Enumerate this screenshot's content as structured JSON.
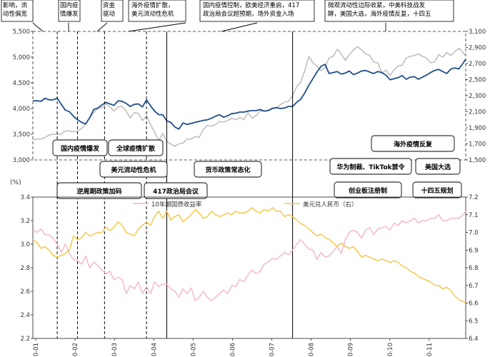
{
  "chart_data": [
    {
      "type": "line",
      "title": "",
      "ylim_left": [
        3000,
        5500
      ],
      "ylim_right": [
        1500,
        3100
      ],
      "left_ticks": [
        "3,000",
        "3,500",
        "4,000",
        "4,500",
        "5,000",
        "5,500"
      ],
      "right_ticks": [
        "1,500",
        "1,700",
        "1,900",
        "2,100",
        "2,300",
        "2,500",
        "2,700",
        "2,900",
        "3,100"
      ],
      "series": [
        {
          "axis": "left",
          "color": "#1f4e8c",
          "x": [
            0,
            3,
            6,
            9,
            12,
            15,
            18,
            21,
            24,
            27,
            30,
            33,
            36,
            39,
            42,
            45,
            48,
            51,
            54,
            57,
            60,
            63,
            66,
            69,
            72,
            75,
            78,
            81,
            84,
            87,
            90,
            93,
            96,
            99,
            102,
            105,
            108,
            111,
            114,
            117,
            120,
            123,
            126,
            129,
            132,
            135,
            138,
            141,
            144,
            147,
            150,
            153,
            156,
            159,
            162,
            165,
            168,
            171,
            174,
            177,
            180,
            183,
            186,
            189,
            192,
            195,
            198,
            201,
            204,
            207,
            210,
            213,
            216,
            219,
            222,
            225,
            228,
            231,
            234,
            237,
            240,
            243,
            246,
            249,
            252,
            255,
            258,
            261,
            264,
            267,
            270,
            273,
            276,
            279,
            282,
            285,
            288,
            291,
            294,
            297,
            300,
            303,
            306,
            309,
            312,
            315,
            318,
            320
          ],
          "values": [
            4150,
            4150,
            4140,
            4200,
            4170,
            4170,
            4200,
            4080,
            3970,
            3940,
            3850,
            3780,
            3730,
            3700,
            3820,
            3980,
            4010,
            4070,
            4120,
            4090,
            4060,
            4150,
            4140,
            4100,
            4040,
            4080,
            4090,
            4030,
            4170,
            4050,
            3950,
            3880,
            3880,
            3760,
            3730,
            3640,
            3600,
            3720,
            3690,
            3710,
            3730,
            3750,
            3770,
            3780,
            3810,
            3850,
            3880,
            3830,
            3860,
            3900,
            3910,
            3930,
            3930,
            3950,
            3960,
            3960,
            3980,
            3950,
            3960,
            4000,
            4020,
            4000,
            4010,
            4040,
            4040,
            4120,
            4180,
            4300,
            4450,
            4580,
            4710,
            4820,
            4860,
            4680,
            4700,
            4720,
            4670,
            4690,
            4730,
            4660,
            4690,
            4730,
            4740,
            4710,
            4680,
            4720,
            4700,
            4650,
            4560,
            4580,
            4600,
            4640,
            4570,
            4610,
            4620,
            4570,
            4610,
            4650,
            4700,
            4740,
            4760,
            4720,
            4680,
            4770,
            4790,
            4770,
            4880,
            4960
          ]
        },
        {
          "axis": "right",
          "color": "#b8b8b8",
          "x": [
            0,
            3,
            6,
            9,
            12,
            15,
            18,
            21,
            24,
            27,
            30,
            33,
            36,
            39,
            42,
            45,
            48,
            51,
            54,
            57,
            60,
            63,
            66,
            69,
            72,
            75,
            78,
            81,
            84,
            87,
            90,
            93,
            96,
            99,
            102,
            105,
            108,
            111,
            114,
            117,
            120,
            123,
            126,
            129,
            132,
            135,
            138,
            141,
            144,
            147,
            150,
            153,
            156,
            159,
            162,
            165,
            168,
            171,
            174,
            177,
            180,
            183,
            186,
            189,
            192,
            195,
            198,
            201,
            204,
            207,
            210,
            213,
            216,
            219,
            222,
            225,
            228,
            231,
            234,
            237,
            240,
            243,
            246,
            249,
            252,
            255,
            258,
            261,
            264,
            267,
            270,
            273,
            276,
            279,
            282,
            285,
            288,
            291,
            294,
            297,
            300,
            303,
            306,
            309,
            312,
            315,
            318,
            320
          ],
          "values": [
            1750,
            1760,
            1760,
            1780,
            1810,
            1820,
            1820,
            1820,
            1860,
            1860,
            1850,
            1860,
            1890,
            1950,
            2020,
            2090,
            2140,
            2150,
            2200,
            2160,
            2110,
            2160,
            2170,
            2110,
            2020,
            2090,
            2080,
            1990,
            2050,
            1940,
            1850,
            1740,
            1830,
            1730,
            1700,
            1670,
            1700,
            1710,
            1760,
            1760,
            1790,
            1780,
            1880,
            1930,
            1920,
            1940,
            1980,
            1970,
            1990,
            2020,
            2000,
            2030,
            2000,
            2090,
            2020,
            2050,
            2110,
            2110,
            2120,
            2150,
            2140,
            2190,
            2220,
            2230,
            2300,
            2410,
            2470,
            2610,
            2790,
            2710,
            2670,
            2610,
            2650,
            2770,
            2790,
            2880,
            2820,
            2740,
            2810,
            2870,
            2910,
            2870,
            2820,
            2800,
            2720,
            2710,
            2580,
            2620,
            2550,
            2620,
            2670,
            2680,
            2770,
            2790,
            2800,
            2820,
            2790,
            2770,
            2710,
            2720,
            2810,
            2780,
            2840,
            2800,
            2850,
            2890,
            2840,
            2790
          ]
        }
      ]
    },
    {
      "type": "line",
      "title": "",
      "ylabel": "(%)",
      "ylim_left": [
        2.2,
        3.4
      ],
      "ylim_right": [
        6.4,
        7.2
      ],
      "left_ticks": [
        "2.2",
        "2.4",
        "2.6",
        "2.8",
        "3.0",
        "3.2",
        "3.4"
      ],
      "right_ticks": [
        "6.4",
        "6.5",
        "6.6",
        "6.7",
        "6.8",
        "6.9",
        "7.0",
        "7.1",
        "7.2"
      ],
      "x_ticks": [
        "0-01",
        "0-02",
        "0-03",
        "0-04",
        "0-05",
        "0-06",
        "0-07",
        "0-08",
        "0-09",
        "0-10",
        "0-11"
      ],
      "legend": [
        "10年期国债收益率",
        "美元兑人民币（右）"
      ],
      "series": [
        {
          "name": "10年期国债收益率",
          "axis": "left",
          "color": "#f4b6c2",
          "x": [
            0,
            3,
            6,
            9,
            12,
            15,
            18,
            21,
            24,
            27,
            30,
            33,
            36,
            39,
            42,
            45,
            48,
            51,
            54,
            57,
            60,
            63,
            66,
            69,
            72,
            75,
            78,
            81,
            84,
            87,
            90,
            93,
            96,
            99,
            102,
            105,
            108,
            111,
            114,
            117,
            120,
            123,
            126,
            129,
            132,
            135,
            138,
            141,
            144,
            147,
            150,
            153,
            156,
            159,
            162,
            165,
            168,
            171,
            174,
            177,
            180,
            183,
            186,
            189,
            192,
            195,
            198,
            201,
            204,
            207,
            210,
            213,
            216,
            219,
            222,
            225,
            228,
            231,
            234,
            237,
            240,
            243,
            246,
            249,
            252,
            255,
            258,
            261,
            264,
            267,
            270,
            273,
            276,
            279,
            282,
            285,
            288,
            291,
            294,
            297,
            300,
            303,
            306,
            309,
            312,
            315,
            318,
            320
          ],
          "values": [
            3.12,
            3.1,
            3.13,
            3.08,
            3.08,
            3.05,
            3.0,
            2.93,
            3.0,
            2.92,
            2.87,
            2.86,
            2.83,
            2.9,
            2.8,
            2.85,
            2.82,
            2.78,
            2.75,
            2.77,
            2.7,
            2.72,
            2.7,
            2.58,
            2.65,
            2.62,
            2.68,
            2.58,
            2.64,
            2.58,
            2.68,
            2.64,
            2.66,
            2.66,
            2.62,
            2.6,
            2.55,
            2.62,
            2.58,
            2.63,
            2.52,
            2.55,
            2.6,
            2.55,
            2.52,
            2.55,
            2.58,
            2.61,
            2.58,
            2.65,
            2.64,
            2.7,
            2.68,
            2.74,
            2.78,
            2.75,
            2.77,
            2.83,
            2.85,
            2.88,
            2.87,
            2.9,
            2.93,
            2.91,
            2.95,
            3.0,
            3.04,
            3.0,
            2.96,
            2.95,
            2.87,
            2.93,
            2.89,
            2.9,
            2.94,
            2.98,
            2.92,
            3.04,
            3.1,
            3.12,
            3.1,
            3.05,
            3.12,
            3.14,
            3.08,
            3.13,
            3.14,
            3.15,
            3.12,
            3.18,
            3.16,
            3.2,
            3.18,
            3.2,
            3.22,
            3.18,
            3.2,
            3.2,
            3.22,
            3.22,
            3.25,
            3.2,
            3.2,
            3.22,
            3.22,
            3.22,
            3.25,
            3.28
          ]
        },
        {
          "name": "美元兑人民币（右）",
          "axis": "right",
          "color": "#f5c542",
          "x": [
            0,
            3,
            6,
            9,
            12,
            15,
            18,
            21,
            24,
            27,
            30,
            33,
            36,
            39,
            42,
            45,
            48,
            51,
            54,
            57,
            60,
            63,
            66,
            69,
            72,
            75,
            78,
            81,
            84,
            87,
            90,
            93,
            96,
            99,
            102,
            105,
            108,
            111,
            114,
            117,
            120,
            123,
            126,
            129,
            132,
            135,
            138,
            141,
            144,
            147,
            150,
            153,
            156,
            159,
            162,
            165,
            168,
            171,
            174,
            177,
            180,
            183,
            186,
            189,
            192,
            195,
            198,
            201,
            204,
            207,
            210,
            213,
            216,
            219,
            222,
            225,
            228,
            231,
            234,
            237,
            240,
            243,
            246,
            249,
            252,
            255,
            258,
            261,
            264,
            267,
            270,
            273,
            276,
            279,
            282,
            285,
            288,
            291,
            294,
            297,
            300,
            303,
            306,
            309,
            312,
            315,
            318,
            320
          ],
          "values": [
            6.96,
            6.94,
            6.91,
            6.92,
            6.9,
            6.87,
            6.86,
            6.87,
            6.88,
            6.9,
            6.98,
            6.96,
            6.97,
            7.0,
            6.98,
            6.99,
            7.0,
            7.0,
            7.03,
            7.01,
            7.03,
            7.06,
            7.04,
            7.0,
            6.99,
            6.98,
            7.02,
            7.04,
            7.06,
            7.04,
            7.09,
            7.12,
            7.08,
            7.12,
            7.07,
            7.09,
            7.1,
            7.06,
            7.08,
            7.1,
            7.13,
            7.11,
            7.08,
            7.09,
            7.12,
            7.1,
            7.09,
            7.1,
            7.11,
            7.1,
            7.12,
            7.11,
            7.11,
            7.12,
            7.14,
            7.12,
            7.11,
            7.13,
            7.12,
            7.14,
            7.12,
            7.12,
            7.09,
            7.1,
            7.09,
            7.07,
            7.05,
            7.04,
            7.02,
            7.0,
            6.98,
            6.99,
            6.97,
            6.96,
            6.94,
            6.92,
            6.94,
            6.92,
            6.91,
            6.92,
            6.89,
            6.86,
            6.87,
            6.86,
            6.85,
            6.84,
            6.85,
            6.84,
            6.83,
            6.84,
            6.83,
            6.81,
            6.8,
            6.78,
            6.77,
            6.75,
            6.74,
            6.73,
            6.72,
            6.7,
            6.7,
            6.68,
            6.69,
            6.67,
            6.64,
            6.62,
            6.61,
            6.6
          ]
        }
      ]
    }
  ],
  "top_notes": [
    "影响，流\n动性偏宽",
    "国内疫\n情爆发",
    "资金\n驱动",
    "海外疫情扩散，\n美元流动性危机",
    "国内疫情控制，欧美经济重启，417\n政治局会议超预期，场外资金入场",
    "微观流动性边际收紧，中美科技战发\n酵，美国大选，海外疫情反复，十四五"
  ],
  "event_boxes": [
    "国内疫情爆发",
    "全球疫情扩散",
    "美元流动性危机",
    "逆周期政策加码",
    "417政治局会议",
    "货币政策常态化",
    "海外疫情反复",
    "华为制裁、TikTok禁令",
    "美国大选",
    "创业板注册制",
    "十四五规划"
  ]
}
